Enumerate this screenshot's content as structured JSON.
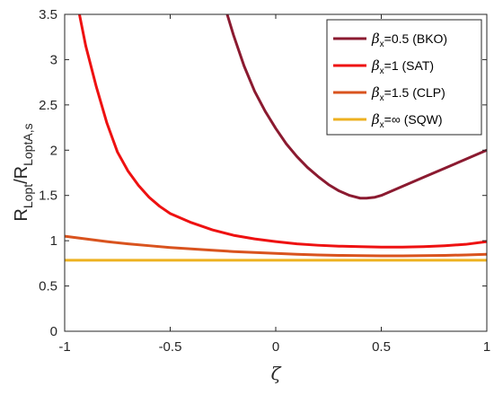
{
  "chart_data": {
    "type": "line",
    "xlabel": "ζ",
    "ylabel": {
      "main1": "R",
      "sub1": "Lopt",
      "slash": "/",
      "main2": "R",
      "sub2": "LoptA,s"
    },
    "xlim": [
      -1,
      1
    ],
    "ylim": [
      0,
      3.5
    ],
    "xticks": [
      -1,
      -0.5,
      0,
      0.5,
      1
    ],
    "xtick_labels": [
      "-1",
      "-0.5",
      "0",
      "0.5",
      "1"
    ],
    "yticks": [
      0,
      0.5,
      1,
      1.5,
      2,
      2.5,
      3,
      3.5
    ],
    "ytick_labels": [
      "0",
      "0.5",
      "1",
      "1.5",
      "2",
      "2.5",
      "3",
      "3.5"
    ],
    "grid": false,
    "legend_position": "top-right",
    "series": [
      {
        "legend_greek": "β",
        "legend_sub": "x",
        "legend_rest": "=0.5 (BKO)",
        "color": "#8b1a30",
        "x": [
          -0.23,
          -0.2,
          -0.15,
          -0.1,
          -0.05,
          0,
          0.05,
          0.1,
          0.15,
          0.2,
          0.25,
          0.3,
          0.35,
          0.4,
          0.43,
          0.47,
          0.5,
          0.6,
          0.7,
          0.8,
          0.9,
          1.0
        ],
        "y": [
          3.5,
          3.27,
          2.93,
          2.65,
          2.43,
          2.24,
          2.07,
          1.93,
          1.81,
          1.71,
          1.62,
          1.55,
          1.5,
          1.47,
          1.47,
          1.48,
          1.5,
          1.6,
          1.7,
          1.8,
          1.9,
          2.0
        ]
      },
      {
        "legend_greek": "β",
        "legend_sub": "x",
        "legend_rest": "=1 (SAT)",
        "color": "#ee1111",
        "x": [
          -0.93,
          -0.9,
          -0.85,
          -0.8,
          -0.75,
          -0.7,
          -0.65,
          -0.6,
          -0.55,
          -0.5,
          -0.4,
          -0.3,
          -0.2,
          -0.1,
          0,
          0.1,
          0.2,
          0.3,
          0.4,
          0.5,
          0.6,
          0.7,
          0.8,
          0.9,
          1.0
        ],
        "y": [
          3.5,
          3.15,
          2.7,
          2.3,
          1.98,
          1.77,
          1.61,
          1.48,
          1.38,
          1.3,
          1.2,
          1.12,
          1.06,
          1.02,
          0.99,
          0.965,
          0.95,
          0.94,
          0.935,
          0.93,
          0.93,
          0.935,
          0.945,
          0.96,
          0.99
        ]
      },
      {
        "legend_greek": "β",
        "legend_sub": "x",
        "legend_rest": "=1.5 (CLP)",
        "color": "#d9531e",
        "x": [
          -1,
          -0.9,
          -0.8,
          -0.7,
          -0.6,
          -0.5,
          -0.4,
          -0.3,
          -0.2,
          -0.1,
          0,
          0.1,
          0.2,
          0.3,
          0.4,
          0.5,
          0.6,
          0.7,
          0.8,
          0.9,
          1.0
        ],
        "y": [
          1.05,
          1.02,
          0.99,
          0.965,
          0.945,
          0.925,
          0.91,
          0.895,
          0.88,
          0.87,
          0.86,
          0.85,
          0.843,
          0.838,
          0.835,
          0.833,
          0.833,
          0.835,
          0.838,
          0.843,
          0.85
        ]
      },
      {
        "legend_greek": "β",
        "legend_sub": "x",
        "legend_rest": "=∞ (SQW)",
        "color": "#edb120",
        "x": [
          -1,
          1
        ],
        "y": [
          0.785,
          0.785
        ]
      }
    ]
  }
}
